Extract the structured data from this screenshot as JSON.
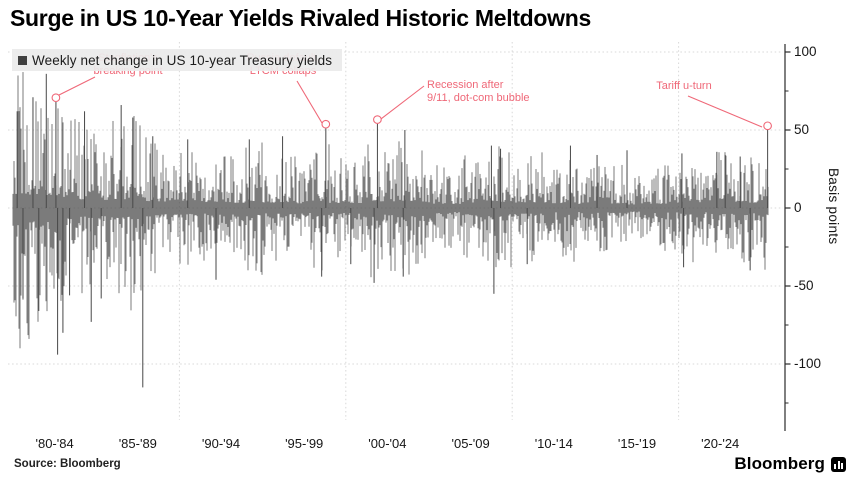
{
  "header": {
    "title": "Surge in US 10-Year Yields Rivaled Historic Meltdowns"
  },
  "legend": {
    "label": "Weekly net change in US 10-year Treasury yields"
  },
  "source": {
    "label": "Source: Bloomberg"
  },
  "brand": {
    "name": "Bloomberg",
    "icon": "bloomberg-bars-icon"
  },
  "colors": {
    "bar": "#484848",
    "annotation_pink": "#ef6878",
    "grid": "#d8d8d8",
    "axis": "#2b2b2b",
    "legend_bg": "rgba(235,235,235,0.93)"
  },
  "chart_data": {
    "type": "bar",
    "title": "Surge in US 10-Year Yields Rivaled Historic Meltdowns",
    "series_name": "Weekly net change in US 10-year Treasury yields",
    "sampling": "weekly",
    "xlabel": "",
    "ylabel": "Basis points",
    "x_range": [
      1980.0,
      2025.4
    ],
    "ylim": [
      -133,
      107
    ],
    "x_axis": {
      "tick_labels": [
        "'80-'84",
        "'85-'89",
        "'90-'94",
        "'95-'99",
        "'00-'04",
        "'05-'09",
        "'10-'14",
        "'15-'19",
        "'20-'24"
      ],
      "tick_center_years": [
        1982.5,
        1987.5,
        1992.5,
        1997.5,
        2002.5,
        2007.5,
        2012.5,
        2017.5,
        2022.5
      ]
    },
    "y_axis": {
      "label": "Basis points",
      "tick_labels": [
        "100",
        "50",
        "0",
        "-50",
        "-100"
      ],
      "ticks": [
        100,
        50,
        0,
        -50,
        -100
      ],
      "minor_ticks": [
        75,
        25,
        -25,
        -75,
        -125
      ],
      "position": "right"
    },
    "grid": {
      "h_line_values": [
        100,
        50,
        0,
        -50,
        -100
      ],
      "v_line_years": [
        1990,
        2000,
        2010,
        2020
      ],
      "style": "dotted"
    },
    "annotations": [
      {
        "text": "Stagflation's\nbreaking point",
        "anchor_year": 1982.58,
        "anchor_value_bp": 68,
        "line": {
          "x1": 95,
          "y1": 77,
          "x2": 59,
          "y2": 95
        }
      },
      {
        "text": "Russia default,\nLTCM collaps",
        "anchor_year": 1998.8,
        "anchor_value_bp": 51,
        "line": {
          "x1": 297,
          "y1": 81,
          "x2": 322,
          "y2": 123
        }
      },
      {
        "text": "Recession after\n9/11, dot-com bubble",
        "anchor_year": 2001.9,
        "anchor_value_bp": 54,
        "line": {
          "x1": 424,
          "y1": 86,
          "x2": 381,
          "y2": 119
        }
      },
      {
        "text": "Tariff u-turn",
        "anchor_year": 2025.35,
        "anchor_value_bp": 50,
        "line": {
          "x1": 688,
          "y1": 96,
          "x2": 762,
          "y2": 127
        }
      }
    ],
    "key_spikes_bp": [
      [
        1980.25,
        62
      ],
      [
        1980.6,
        -58
      ],
      [
        1981.2,
        71
      ],
      [
        1981.55,
        -66
      ],
      [
        1982.0,
        86
      ],
      [
        1982.58,
        68
      ],
      [
        1982.68,
        -94
      ],
      [
        1983.0,
        -80
      ],
      [
        1983.4,
        -56
      ],
      [
        1984.3,
        62
      ],
      [
        1984.7,
        -73
      ],
      [
        1985.3,
        -58
      ],
      [
        1986.5,
        66
      ],
      [
        1987.2,
        58
      ],
      [
        1987.8,
        -115
      ],
      [
        1988.4,
        46
      ],
      [
        1990.5,
        44
      ],
      [
        1992.2,
        -46
      ],
      [
        1994.2,
        44
      ],
      [
        1996.2,
        46
      ],
      [
        1998.55,
        -44
      ],
      [
        1998.8,
        51
      ],
      [
        2000.3,
        -36
      ],
      [
        2001.7,
        -48
      ],
      [
        2001.9,
        54
      ],
      [
        2003.45,
        -44
      ],
      [
        2003.55,
        50
      ],
      [
        2008.75,
        40
      ],
      [
        2008.9,
        -55
      ],
      [
        2009.3,
        38
      ],
      [
        2010.9,
        -36
      ],
      [
        2013.5,
        40
      ],
      [
        2015.1,
        34
      ],
      [
        2016.9,
        37
      ],
      [
        2020.2,
        35
      ],
      [
        2020.3,
        -38
      ],
      [
        2022.3,
        36
      ],
      [
        2022.8,
        34
      ],
      [
        2023.7,
        33
      ],
      [
        2024.3,
        -40
      ],
      [
        2025.35,
        50
      ]
    ],
    "synthesis": {
      "note": "Weekly bars are sub-pixel noise; envelope (max |bp| by year, read from chart) + seed reproduce the texture.",
      "seed": 1987,
      "envelope_by_year_start": 1980,
      "envelope_by_year": [
        90,
        85,
        82,
        62,
        55,
        52,
        56,
        66,
        42,
        40,
        38,
        36,
        40,
        34,
        44,
        34,
        38,
        30,
        42,
        32,
        32,
        46,
        42,
        46,
        38,
        28,
        26,
        34,
        46,
        40,
        35,
        36,
        26,
        36,
        26,
        28,
        30,
        22,
        26,
        28,
        36,
        28,
        38,
        36,
        34,
        42
      ]
    }
  }
}
